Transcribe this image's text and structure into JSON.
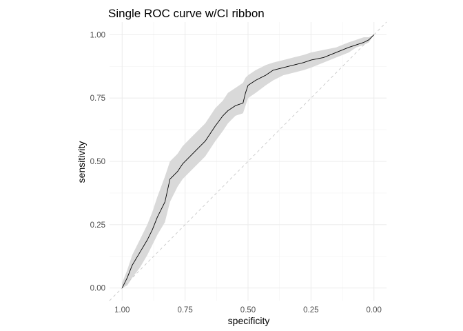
{
  "chart_data": {
    "type": "line",
    "title": "Single ROC curve w/CI ribbon",
    "xlabel": "specificity",
    "ylabel": "sensitivity",
    "x_reversed": true,
    "xlim": [
      1.05,
      -0.05
    ],
    "ylim": [
      -0.05,
      1.05
    ],
    "x_ticks": [
      1.0,
      0.75,
      0.5,
      0.25,
      0.0
    ],
    "x_tick_labels": [
      "1.00",
      "0.75",
      "0.50",
      "0.25",
      "0.00"
    ],
    "y_ticks": [
      0.0,
      0.25,
      0.5,
      0.75,
      1.0
    ],
    "y_tick_labels": [
      "0.00",
      "0.25",
      "0.50",
      "0.75",
      "1.00"
    ],
    "grid": true,
    "legend": "none",
    "colors": {
      "line": "#000000",
      "ribbon": "#d9d9d9",
      "reference": "#c8c8c8"
    },
    "reference_line": {
      "x": [
        1.0,
        0.0
      ],
      "y": [
        0.0,
        1.0
      ]
    },
    "series": [
      {
        "x": [
          1.0,
          0.98,
          0.96,
          0.93,
          0.9,
          0.88,
          0.86,
          0.83,
          0.81,
          0.78,
          0.76,
          0.73,
          0.7,
          0.67,
          0.65,
          0.63,
          0.6,
          0.58,
          0.55,
          0.52,
          0.51,
          0.5,
          0.47,
          0.43,
          0.4,
          0.36,
          0.32,
          0.28,
          0.25,
          0.2,
          0.15,
          0.1,
          0.07,
          0.04,
          0.02,
          0.0
        ],
        "y": [
          0.0,
          0.04,
          0.09,
          0.14,
          0.19,
          0.23,
          0.28,
          0.34,
          0.43,
          0.46,
          0.49,
          0.52,
          0.55,
          0.58,
          0.61,
          0.64,
          0.68,
          0.7,
          0.72,
          0.73,
          0.77,
          0.8,
          0.82,
          0.84,
          0.86,
          0.87,
          0.88,
          0.89,
          0.9,
          0.91,
          0.93,
          0.95,
          0.96,
          0.97,
          0.98,
          1.0
        ],
        "lower": [
          0.0,
          0.01,
          0.04,
          0.08,
          0.13,
          0.17,
          0.21,
          0.26,
          0.34,
          0.4,
          0.43,
          0.46,
          0.49,
          0.52,
          0.55,
          0.58,
          0.62,
          0.65,
          0.68,
          0.69,
          0.72,
          0.75,
          0.77,
          0.8,
          0.82,
          0.84,
          0.85,
          0.86,
          0.87,
          0.89,
          0.91,
          0.93,
          0.95,
          0.96,
          0.97,
          1.0
        ],
        "upper": [
          0.02,
          0.07,
          0.13,
          0.19,
          0.25,
          0.3,
          0.36,
          0.44,
          0.5,
          0.53,
          0.56,
          0.59,
          0.62,
          0.65,
          0.68,
          0.71,
          0.74,
          0.77,
          0.79,
          0.81,
          0.83,
          0.84,
          0.86,
          0.88,
          0.89,
          0.9,
          0.91,
          0.92,
          0.93,
          0.94,
          0.95,
          0.97,
          0.98,
          0.99,
          0.99,
          1.0
        ]
      }
    ]
  }
}
